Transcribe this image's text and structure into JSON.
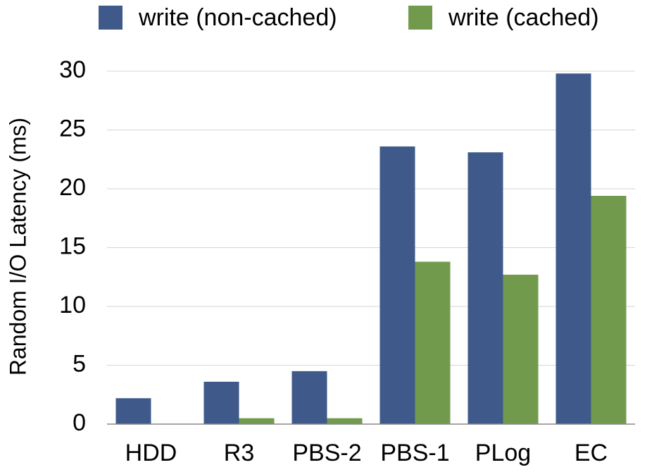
{
  "chart_data": {
    "type": "bar",
    "y_label": "Random I/O Latency (ms)",
    "categories": [
      "HDD",
      "R3",
      "PBS-2",
      "PBS-1",
      "PLog",
      "EC"
    ],
    "series": [
      {
        "name": "write (non-cached)",
        "color": "#3f5a8a",
        "values": [
          2.2,
          3.6,
          4.5,
          23.6,
          23.1,
          29.8
        ]
      },
      {
        "name": "write (cached)",
        "color": "#719a4d",
        "values": [
          0,
          0.5,
          0.5,
          13.8,
          12.7,
          19.4
        ]
      }
    ],
    "ylim": [
      0,
      30
    ],
    "yticks": [
      0,
      5,
      10,
      15,
      20,
      25,
      30
    ],
    "grid": true
  }
}
